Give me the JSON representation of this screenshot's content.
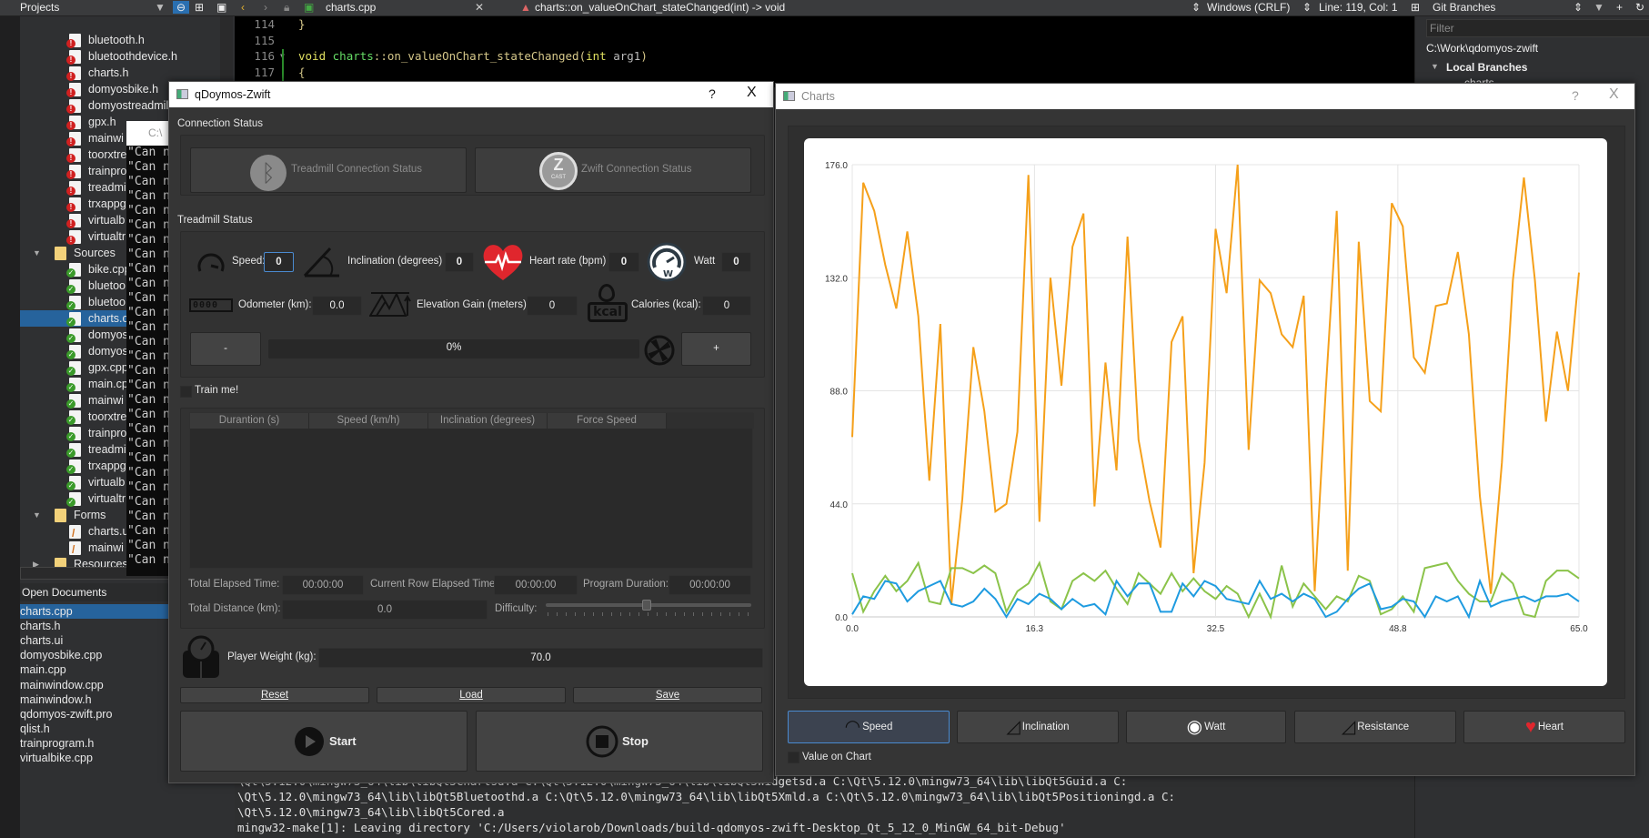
{
  "topbar": {
    "projects_label": "Projects",
    "file_name": "charts.cpp",
    "function_name": "charts::on_valueOnChart_stateChanged(int) -> void",
    "line_endings": "Windows (CRLF)",
    "cursor_position": "Line: 119, Col: 1",
    "git_panel_label": "Git Branches"
  },
  "project_tree": [
    {
      "label": "bluetooth.h",
      "kind": "h",
      "indent": 2
    },
    {
      "label": "bluetoothdevice.h",
      "kind": "h",
      "indent": 2
    },
    {
      "label": "charts.h",
      "kind": "h",
      "indent": 2
    },
    {
      "label": "domyosbike.h",
      "kind": "h",
      "indent": 2
    },
    {
      "label": "domyostreadmil",
      "kind": "h",
      "indent": 2
    },
    {
      "label": "gpx.h",
      "kind": "h",
      "indent": 2
    },
    {
      "label": "mainwi",
      "kind": "h",
      "indent": 2
    },
    {
      "label": "toorxtre",
      "kind": "h",
      "indent": 2
    },
    {
      "label": "trainpro",
      "kind": "h",
      "indent": 2
    },
    {
      "label": "treadmi",
      "kind": "h",
      "indent": 2
    },
    {
      "label": "trxappg",
      "kind": "h",
      "indent": 2
    },
    {
      "label": "virtualb",
      "kind": "h",
      "indent": 2
    },
    {
      "label": "virtualtr",
      "kind": "h",
      "indent": 2
    },
    {
      "label": "Sources",
      "kind": "folder",
      "indent": 1,
      "expanded": true
    },
    {
      "label": "bike.cpp",
      "kind": "c",
      "indent": 2
    },
    {
      "label": "bluetoo",
      "kind": "c",
      "indent": 2
    },
    {
      "label": "bluetoo",
      "kind": "c",
      "indent": 2
    },
    {
      "label": "charts.c",
      "kind": "c",
      "indent": 2,
      "selected": true
    },
    {
      "label": "domyos",
      "kind": "c",
      "indent": 2
    },
    {
      "label": "domyos",
      "kind": "c",
      "indent": 2
    },
    {
      "label": "gpx.cpp",
      "kind": "c",
      "indent": 2
    },
    {
      "label": "main.cp",
      "kind": "c",
      "indent": 2
    },
    {
      "label": "mainwi",
      "kind": "c",
      "indent": 2
    },
    {
      "label": "toorxtre",
      "kind": "c",
      "indent": 2
    },
    {
      "label": "trainpro",
      "kind": "c",
      "indent": 2
    },
    {
      "label": "treadmi",
      "kind": "c",
      "indent": 2
    },
    {
      "label": "trxappg",
      "kind": "c",
      "indent": 2
    },
    {
      "label": "virtualb",
      "kind": "c",
      "indent": 2
    },
    {
      "label": "virtualtr",
      "kind": "c",
      "indent": 2
    },
    {
      "label": "Forms",
      "kind": "folder",
      "indent": 1,
      "expanded": true
    },
    {
      "label": "charts.u",
      "kind": "u",
      "indent": 2
    },
    {
      "label": "mainwi",
      "kind": "u",
      "indent": 2
    },
    {
      "label": "Resources",
      "kind": "folder",
      "indent": 1,
      "expanded": false
    }
  ],
  "open_documents": {
    "title": "Open Documents",
    "items": [
      "charts.cpp",
      "charts.h",
      "charts.ui",
      "domyosbike.cpp",
      "main.cpp",
      "mainwindow.cpp",
      "mainwindow.h",
      "qdomyos-zwift.pro",
      "qlist.h",
      "trainprogram.h",
      "virtualbike.cpp"
    ],
    "selected_index": 0
  },
  "editor": {
    "lines": [
      {
        "num": "114",
        "tokens": [
          {
            "t": "}",
            "c": "#d6c88a"
          }
        ]
      },
      {
        "num": "115",
        "tokens": []
      },
      {
        "num": "116",
        "tokens": [
          {
            "t": "void ",
            "c": "#e0e060"
          },
          {
            "t": "charts",
            "c": "#66dd66"
          },
          {
            "t": "::",
            "c": "#d6c88a"
          },
          {
            "t": "on_valueOnChart_stateChanged",
            "c": "#d6c88a"
          },
          {
            "t": "(",
            "c": "#d6c88a"
          },
          {
            "t": "int",
            "c": "#e0e060"
          },
          {
            "t": " arg1",
            "c": "#bbbbbb"
          },
          {
            "t": ")",
            "c": "#d6c88a"
          }
        ]
      },
      {
        "num": "117",
        "tokens": [
          {
            "t": "{",
            "c": "#d6c88a"
          }
        ]
      }
    ]
  },
  "cmd_window": {
    "title": "C:\\",
    "line_text": "\"Can n"
  },
  "build_output": [
    "\\Qt\\5.12.0\\mingw73_64\\lib\\libQt5Chartsd.a C:\\Qt\\5.12.0\\mingw73_64\\lib\\libQt5Widgetsd.a C:\\Qt\\5.12.0\\mingw73_64\\lib\\libQt5Guid.a C:",
    "\\Qt\\5.12.0\\mingw73_64\\lib\\libQt5Bluetoothd.a C:\\Qt\\5.12.0\\mingw73_64\\lib\\libQt5Xmld.a C:\\Qt\\5.12.0\\mingw73_64\\lib\\libQt5Positioningd.a C:",
    "\\Qt\\5.12.0\\mingw73_64\\lib\\libQt5Cored.a",
    "mingw32-make[1]: Leaving directory 'C:/Users/violarob/Downloads/build-qdomyos-zwift-Desktop_Qt_5_12_0_MinGW_64_bit-Debug'"
  ],
  "git_panel": {
    "filter_placeholder": "Filter",
    "repo_path": "C:\\Work\\qdomyos-zwift",
    "local_branches": "Local Branches",
    "branch": "charts"
  },
  "main_dialog": {
    "title": "qDoymos-Zwift",
    "help": "?",
    "close": "X",
    "connection_status_label": "Connection Status",
    "treadmill_connection": "Treadmill Connection Status",
    "zwift_connection": "Zwift Connection Status",
    "zwift_logo_text": "CAST",
    "treadmill_status_label": "Treadmill Status",
    "speed_label": "Speed:",
    "speed_value": "0",
    "inclination_label": "Inclination (degrees)",
    "inclination_value": "0",
    "heart_label": "Heart rate (bpm)",
    "heart_value": "0",
    "watt_label": "Watt",
    "watt_value": "0",
    "odometer_label": "Odometer (km):",
    "odometer_value": "0.0",
    "odometer_icon_text": "0000",
    "elevation_label": "Elevation Gain (meters):",
    "elevation_value": "0",
    "calories_label": "Calories (kcal):",
    "calories_value": "0",
    "kcal_icon_text": "kcal",
    "minus_label": "-",
    "plus_label": "+",
    "fan_progress": "0%",
    "train_me_label": "Train me!",
    "train_me_checked": false,
    "table_headers": [
      "Durantion (s)",
      "Speed (km/h)",
      "Inclination (degrees)",
      "Force Speed"
    ],
    "total_elapsed_label": "Total Elapsed Time:",
    "total_elapsed_value": "00:00:00",
    "row_elapsed_label": "Current Row Elapsed Time:",
    "row_elapsed_value": "00:00:00",
    "program_duration_label": "Program Duration:",
    "program_duration_value": "00:00:00",
    "total_distance_label": "Total Distance (km):",
    "total_distance_value": "0.0",
    "difficulty_label": "Difficulty:",
    "difficulty_percent": 49,
    "player_weight_label": "Player Weight (kg):",
    "player_weight_value": "70.0",
    "reset_label": "Reset",
    "load_label": "Load",
    "save_label": "Save",
    "start_label": "Start",
    "stop_label": "Stop"
  },
  "charts_dialog": {
    "title": "Charts",
    "help": "?",
    "close": "X",
    "buttons": [
      "Speed",
      "Inclination",
      "Watt",
      "Resistance",
      "Heart"
    ],
    "active_button": "Speed",
    "value_on_chart_label": "Value on Chart",
    "value_on_chart_checked": false
  },
  "chart_data": {
    "type": "line",
    "xlim": [
      0,
      65
    ],
    "ylim": [
      0,
      176
    ],
    "xticks": [
      "0.0",
      "16.3",
      "32.5",
      "48.8",
      "65.0"
    ],
    "yticks": [
      "0.0",
      "44.0",
      "88.0",
      "132.0",
      "176.0"
    ],
    "grid": true,
    "legend": "none",
    "series": [
      {
        "color": "#f5a01a",
        "values": [
          70,
          169,
          158,
          137,
          120,
          150,
          117,
          53,
          114,
          5,
          46,
          105,
          80,
          41,
          44,
          72,
          172,
          37,
          132,
          90,
          144,
          157,
          43,
          99,
          57,
          148,
          69,
          45,
          27,
          107,
          117,
          17,
          60,
          151,
          126,
          176,
          65,
          131,
          126,
          110,
          105,
          125,
          10,
          88,
          158,
          18,
          146,
          84,
          80,
          161,
          152,
          101,
          95,
          121,
          122,
          142,
          110,
          47,
          9,
          60,
          131,
          171,
          131,
          76,
          111,
          88,
          134
        ]
      },
      {
        "color": "#8bc34a",
        "values": [
          17,
          2,
          10,
          16,
          10,
          14,
          21,
          6,
          5,
          19,
          19,
          17,
          20,
          17,
          2,
          10,
          13,
          21,
          6,
          3,
          14,
          17,
          14,
          18,
          11,
          5,
          17,
          13,
          9,
          17,
          10,
          15,
          10,
          7,
          12,
          9,
          0,
          9,
          0,
          20,
          4,
          13,
          8,
          3,
          8,
          6,
          16,
          14,
          1,
          3,
          8,
          2,
          19,
          20,
          21,
          14,
          9,
          6,
          6,
          17,
          13,
          1,
          0,
          14,
          18,
          18,
          15
        ]
      },
      {
        "color": "#1e9be0",
        "values": [
          1,
          8,
          7,
          14,
          13,
          6,
          10,
          12,
          14,
          5,
          4,
          6,
          11,
          7,
          0,
          7,
          5,
          9,
          7,
          3,
          7,
          4,
          5,
          1,
          14,
          8,
          13,
          13,
          2,
          2,
          13,
          8,
          14,
          12,
          7,
          6,
          5,
          14,
          7,
          9,
          6,
          9,
          7,
          0,
          2,
          7,
          11,
          13,
          3,
          4,
          7,
          6,
          0,
          8,
          6,
          8,
          0,
          14,
          4,
          6,
          7,
          8,
          6,
          8,
          8,
          9,
          6
        ]
      }
    ]
  }
}
